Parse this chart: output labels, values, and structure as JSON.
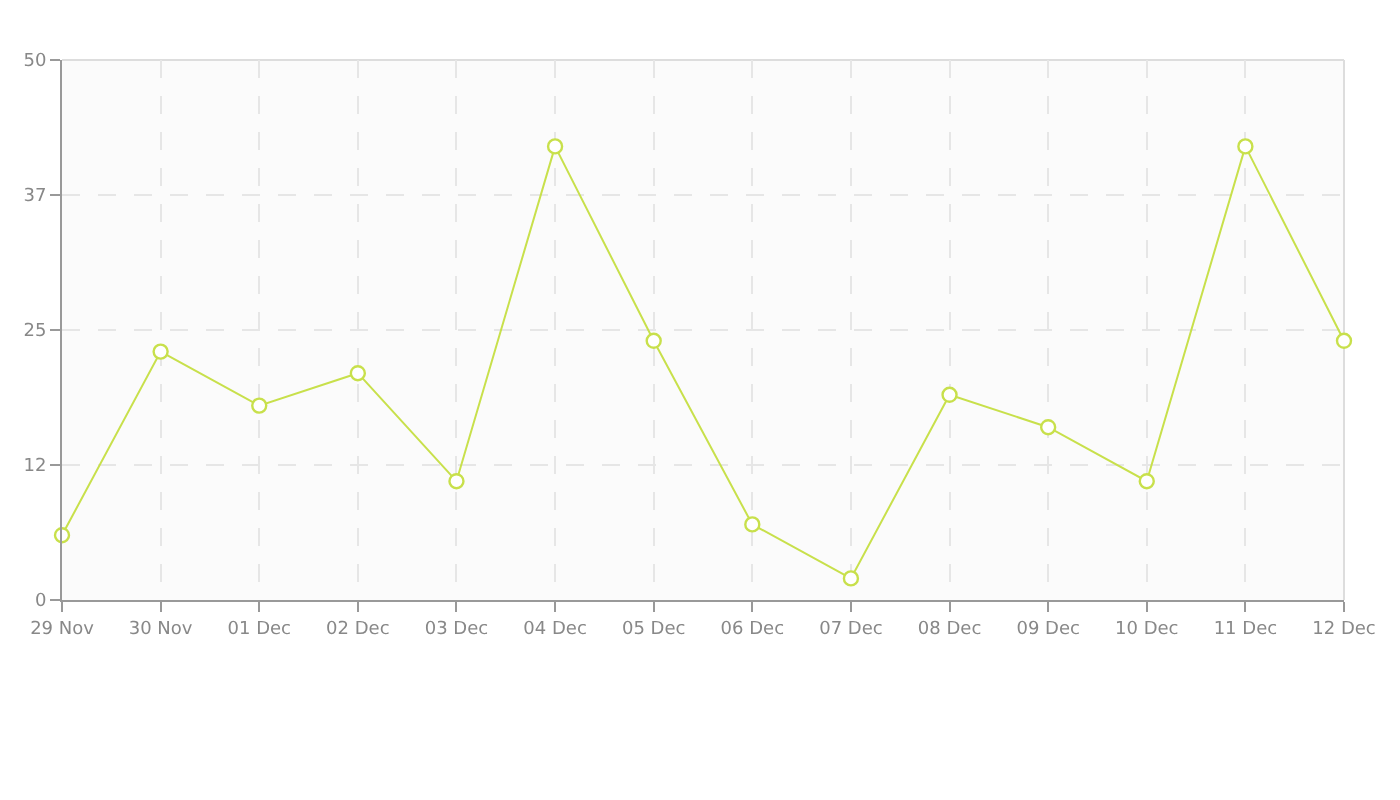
{
  "chart_data": {
    "type": "line",
    "categories": [
      "29 Nov",
      "30 Nov",
      "01 Dec",
      "02 Dec",
      "03 Dec",
      "04 Dec",
      "05 Dec",
      "06 Dec",
      "07 Dec",
      "08 Dec",
      "09 Dec",
      "10 Dec",
      "11 Dec",
      "12 Dec"
    ],
    "series": [
      {
        "color": "#c8e04b",
        "values": [
          6,
          23,
          18,
          21,
          11,
          42,
          24,
          7,
          2,
          19,
          16,
          11,
          42,
          24
        ]
      }
    ],
    "ylim": [
      0,
      50
    ],
    "yticks": [
      0,
      {
        "value": 12.5,
        "label": "12"
      },
      25,
      {
        "value": 37.5,
        "label": "37"
      },
      50
    ],
    "grid": true,
    "marker": "circle",
    "line_style": "solid"
  }
}
